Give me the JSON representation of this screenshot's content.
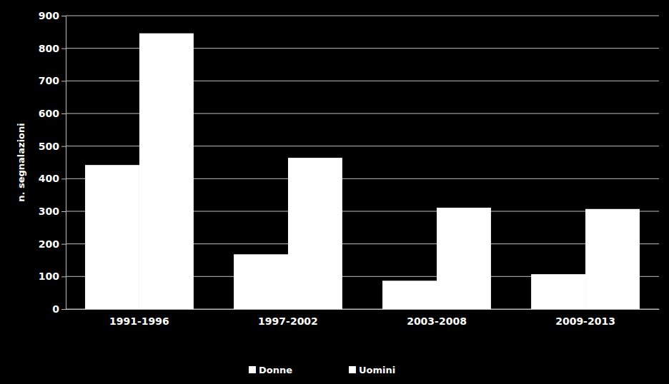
{
  "chart_data": {
    "type": "bar",
    "y_label": "n. segnalazioni",
    "categories": [
      "1991-1996",
      "1997-2002",
      "2003-2008",
      "2009-2013"
    ],
    "series": [
      {
        "name": "Donne",
        "color": "#ffffff",
        "values": [
          442,
          168,
          87,
          107
        ]
      },
      {
        "name": "Uomini",
        "color": "#ffffff",
        "values": [
          846,
          464,
          311,
          307
        ]
      }
    ],
    "ylim": [
      0,
      900
    ],
    "yticks": [
      0,
      100,
      200,
      300,
      400,
      500,
      600,
      700,
      800,
      900
    ],
    "grid": true,
    "legend": "bottom"
  }
}
